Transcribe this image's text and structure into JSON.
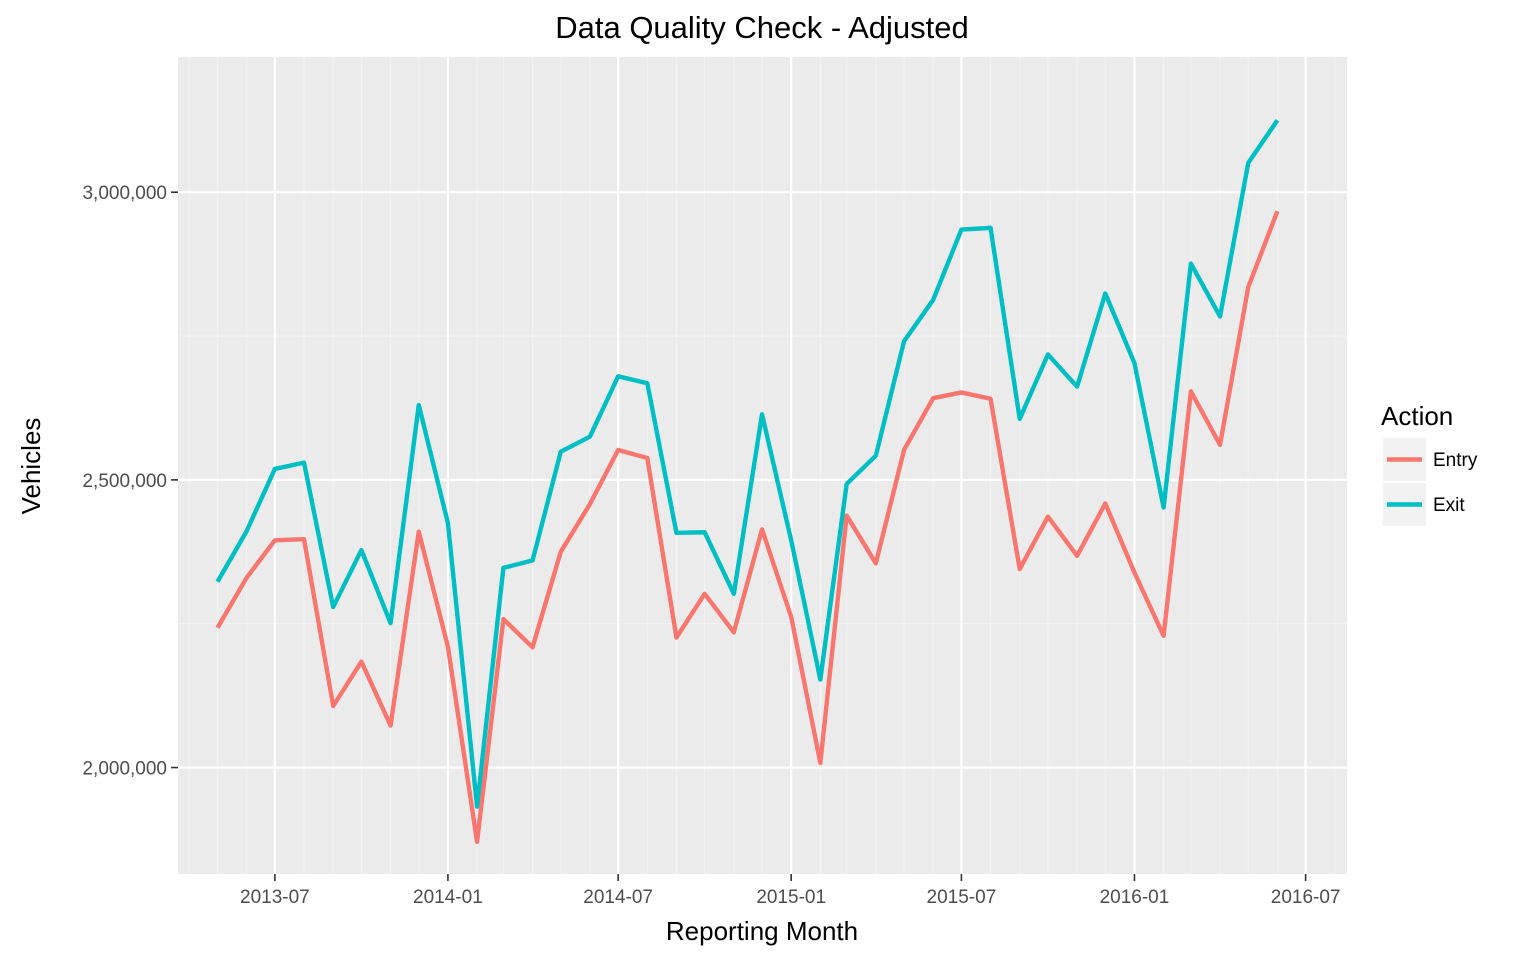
{
  "chart_data": {
    "type": "line",
    "title": "Data Quality Check - Adjusted",
    "xlabel": "Reporting Month",
    "ylabel": "Vehicles",
    "x_is_date": true,
    "xlim": [
      "2013-03-20",
      "2016-08-14"
    ],
    "ylim": [
      1815000,
      3235000
    ],
    "x_ticks": [
      "2013-07",
      "2014-01",
      "2014-07",
      "2015-01",
      "2015-07",
      "2016-01",
      "2016-07"
    ],
    "y_ticks": [
      {
        "value": 2000000,
        "label": "2,000,000"
      },
      {
        "value": 2500000,
        "label": "2,500,000"
      },
      {
        "value": 3000000,
        "label": "3,000,000"
      }
    ],
    "grid": true,
    "legend": {
      "title": "Action",
      "position": "right"
    },
    "x": [
      "2013-05-01",
      "2013-06-01",
      "2013-07-01",
      "2013-08-01",
      "2013-09-01",
      "2013-10-01",
      "2013-11-01",
      "2013-12-01",
      "2014-01-01",
      "2014-02-01",
      "2014-03-01",
      "2014-04-01",
      "2014-05-01",
      "2014-06-01",
      "2014-07-01",
      "2014-08-01",
      "2014-09-01",
      "2014-10-01",
      "2014-11-01",
      "2014-12-01",
      "2015-01-01",
      "2015-02-01",
      "2015-03-01",
      "2015-04-01",
      "2015-05-01",
      "2015-06-01",
      "2015-07-01",
      "2015-08-01",
      "2015-09-01",
      "2015-10-01",
      "2015-11-01",
      "2015-12-01",
      "2016-01-01",
      "2016-02-01",
      "2016-03-01",
      "2016-04-01",
      "2016-05-01",
      "2016-06-01"
    ],
    "series": [
      {
        "name": "Entry",
        "color": "#F8766D",
        "values": [
          2243000,
          2330000,
          2395000,
          2397000,
          2107000,
          2184000,
          2073000,
          2410000,
          2210000,
          1871000,
          2258000,
          2209000,
          2375000,
          2458000,
          2552000,
          2538000,
          2226000,
          2302000,
          2235000,
          2414000,
          2262000,
          2008000,
          2438000,
          2355000,
          2552000,
          2642000,
          2652000,
          2641000,
          2345000,
          2436000,
          2368000,
          2459000,
          2339000,
          2229000,
          2654000,
          2561000,
          2835000,
          2967000
        ]
      },
      {
        "name": "Exit",
        "color": "#00BFC4",
        "values": [
          2323000,
          2411000,
          2519000,
          2530000,
          2279000,
          2378000,
          2251000,
          2630000,
          2425000,
          1932000,
          2347000,
          2360000,
          2549000,
          2575000,
          2680000,
          2668000,
          2408000,
          2409000,
          2302000,
          2614000,
          2395000,
          2153000,
          2493000,
          2542000,
          2741000,
          2813000,
          2935000,
          2938000,
          2606000,
          2718000,
          2662000,
          2824000,
          2703000,
          2452000,
          2876000,
          2784000,
          3051000,
          3125000
        ]
      }
    ]
  }
}
